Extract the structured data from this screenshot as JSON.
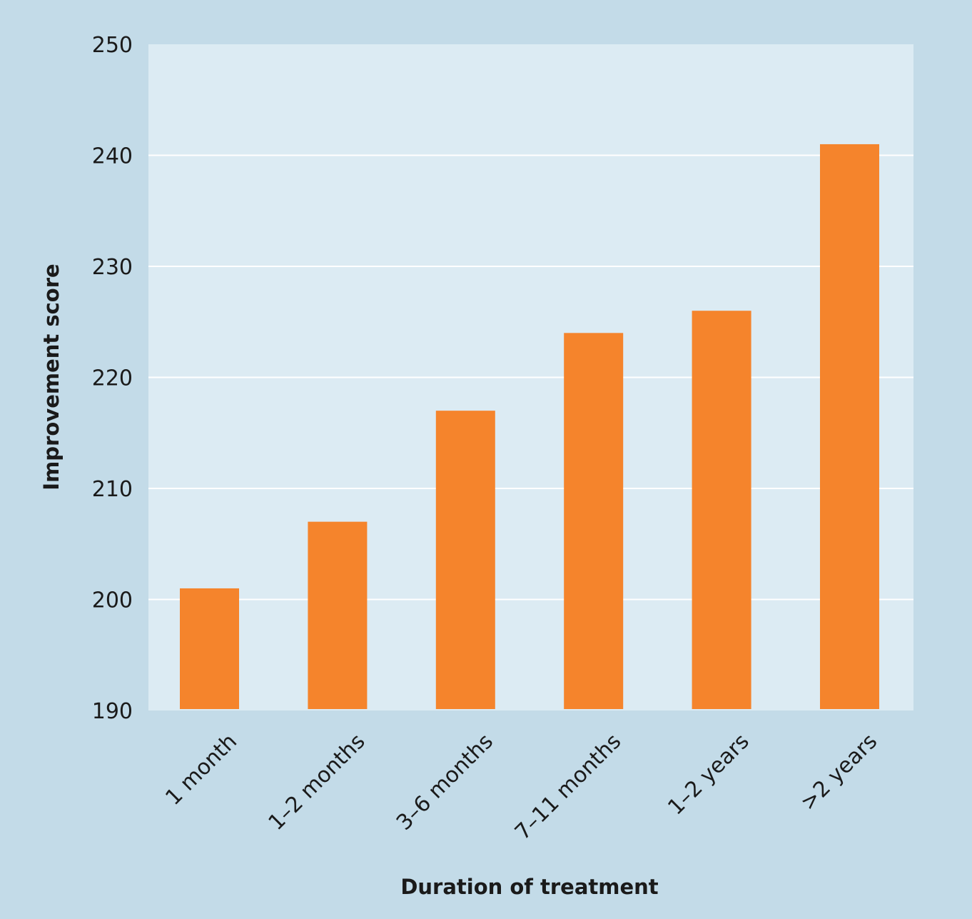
{
  "chart_data": {
    "type": "bar",
    "title": "",
    "xlabel": "Duration of treatment",
    "ylabel": "Improvement score",
    "categories": [
      "1 month",
      "1–2 months",
      "3–6 months",
      "7–11 months",
      "1–2 years",
      ">2 years"
    ],
    "values": [
      201,
      207,
      217,
      224,
      226,
      241
    ],
    "ylim": [
      190,
      250
    ],
    "yticks": [
      190,
      200,
      210,
      220,
      230,
      240,
      250
    ],
    "grid": true,
    "legend": "none",
    "colors": {
      "bar": "#f5842c",
      "plot_background": "#dcebf3",
      "page_background": "#c3dbe8",
      "gridline": "#ffffff"
    }
  }
}
